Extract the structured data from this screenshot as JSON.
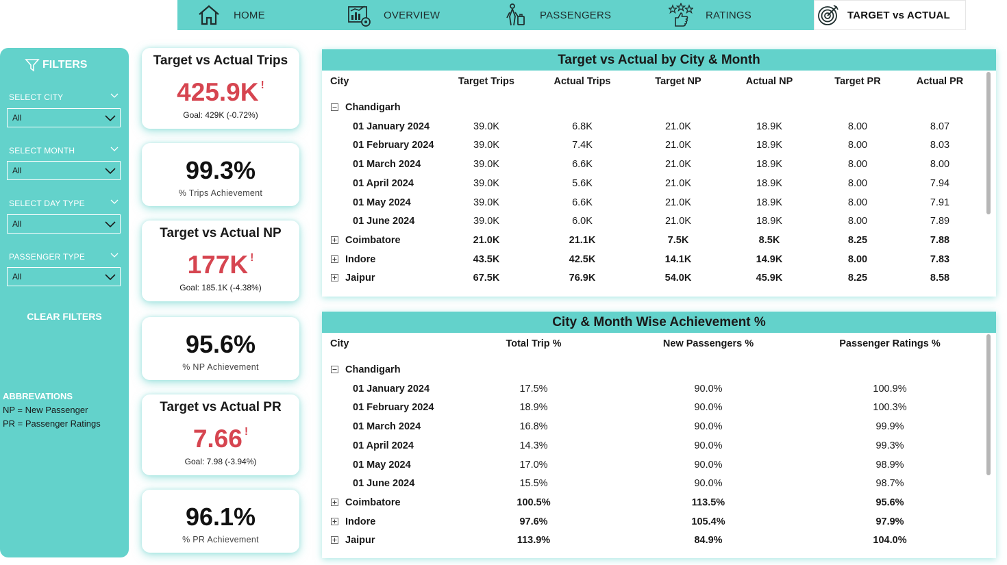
{
  "nav": {
    "home": "HOME",
    "overview": "OVERVIEW",
    "passengers": "PASSENGERS",
    "ratings": "RATINGS",
    "target": "TARGET vs ACTUAL"
  },
  "filters": {
    "title": "FILTERS",
    "city_label": "SELECT CITY",
    "city_value": "All",
    "month_label": "SELECT MONTH",
    "month_value": "All",
    "daytype_label": "SELECT DAY TYPE",
    "daytype_value": "All",
    "ptype_label": "PASSENGER TYPE",
    "ptype_value": "All",
    "clear": "CLEAR FILTERS"
  },
  "abbr": {
    "title": "ABBREVATIONS",
    "np": "NP = New Passenger",
    "pr": "PR = Passenger Ratings"
  },
  "kpis": {
    "trips_title": "Target vs Actual Trips",
    "trips_value": "425.9K",
    "trips_alert": "!",
    "trips_goal": "Goal: 429K (-0.72%)",
    "trips_pct": "99.3%",
    "trips_pct_label": "% Trips Achievement",
    "np_title": "Target vs Actual NP",
    "np_value": "177K",
    "np_alert": "!",
    "np_goal": "Goal: 185.1K (-4.38%)",
    "np_pct": "95.6%",
    "np_pct_label": "% NP Achievement",
    "pr_title": "Target vs Actual PR",
    "pr_value": "7.66",
    "pr_alert": "!",
    "pr_goal": "Goal: 7.98 (-3.94%)",
    "pr_pct": "96.1%",
    "pr_pct_label": "% PR Achievement"
  },
  "table1": {
    "title": "Target vs Actual by City & Month",
    "headers": [
      "City",
      "Target Trips",
      "Actual Trips",
      "Target NP",
      "Actual NP",
      "Target PR",
      "Actual PR"
    ],
    "rows": [
      {
        "label": "Chandigarh",
        "level": 0,
        "icon": "minus",
        "values": [
          "",
          "",
          "",
          "",
          "",
          ""
        ]
      },
      {
        "label": "01 January 2024",
        "level": 1,
        "values": [
          "39.0K",
          "6.8K",
          "21.0K",
          "18.9K",
          "8.00",
          "8.07"
        ]
      },
      {
        "label": "01 February 2024",
        "level": 1,
        "values": [
          "39.0K",
          "7.4K",
          "21.0K",
          "18.9K",
          "8.00",
          "8.03"
        ]
      },
      {
        "label": "01 March 2024",
        "level": 1,
        "values": [
          "39.0K",
          "6.6K",
          "21.0K",
          "18.9K",
          "8.00",
          "8.00"
        ]
      },
      {
        "label": "01 April 2024",
        "level": 1,
        "values": [
          "39.0K",
          "5.6K",
          "21.0K",
          "18.9K",
          "8.00",
          "7.94"
        ]
      },
      {
        "label": "01 May 2024",
        "level": 1,
        "values": [
          "39.0K",
          "6.6K",
          "21.0K",
          "18.9K",
          "8.00",
          "7.91"
        ]
      },
      {
        "label": "01 June 2024",
        "level": 1,
        "values": [
          "39.0K",
          "6.0K",
          "21.0K",
          "18.9K",
          "8.00",
          "7.89"
        ]
      },
      {
        "label": "Coimbatore",
        "level": 0,
        "icon": "plus",
        "values": [
          "21.0K",
          "21.1K",
          "7.5K",
          "8.5K",
          "8.25",
          "7.88"
        ]
      },
      {
        "label": "Indore",
        "level": 0,
        "icon": "plus",
        "values": [
          "43.5K",
          "42.5K",
          "14.1K",
          "14.9K",
          "8.00",
          "7.83"
        ]
      },
      {
        "label": "Jaipur",
        "level": 0,
        "icon": "plus",
        "values": [
          "67.5K",
          "76.9K",
          "54.0K",
          "45.9K",
          "8.25",
          "8.58"
        ]
      }
    ]
  },
  "table2": {
    "title": "City & Month Wise Achievement %",
    "headers": [
      "City",
      "Total Trip %",
      "New Passengers %",
      "Passenger Ratings %"
    ],
    "rows": [
      {
        "label": "Chandigarh",
        "level": 0,
        "icon": "minus",
        "values": [
          "",
          "",
          ""
        ]
      },
      {
        "label": "01 January 2024",
        "level": 1,
        "values": [
          "17.5%",
          "90.0%",
          "100.9%"
        ]
      },
      {
        "label": "01 February 2024",
        "level": 1,
        "values": [
          "18.9%",
          "90.0%",
          "100.3%"
        ]
      },
      {
        "label": "01 March 2024",
        "level": 1,
        "values": [
          "16.8%",
          "90.0%",
          "99.9%"
        ]
      },
      {
        "label": "01 April 2024",
        "level": 1,
        "values": [
          "14.3%",
          "90.0%",
          "99.3%"
        ]
      },
      {
        "label": "01 May 2024",
        "level": 1,
        "values": [
          "17.0%",
          "90.0%",
          "98.9%"
        ]
      },
      {
        "label": "01 June 2024",
        "level": 1,
        "values": [
          "15.5%",
          "90.0%",
          "98.7%"
        ]
      },
      {
        "label": "Coimbatore",
        "level": 0,
        "icon": "plus",
        "values": [
          "100.5%",
          "113.5%",
          "95.6%"
        ]
      },
      {
        "label": "Indore",
        "level": 0,
        "icon": "plus",
        "values": [
          "97.6%",
          "105.4%",
          "97.9%"
        ]
      },
      {
        "label": "Jaipur",
        "level": 0,
        "icon": "plus",
        "values": [
          "113.9%",
          "84.9%",
          "104.0%"
        ]
      }
    ]
  },
  "colors": {
    "accent": "#63d2cb",
    "alert_red": "#d64550"
  }
}
